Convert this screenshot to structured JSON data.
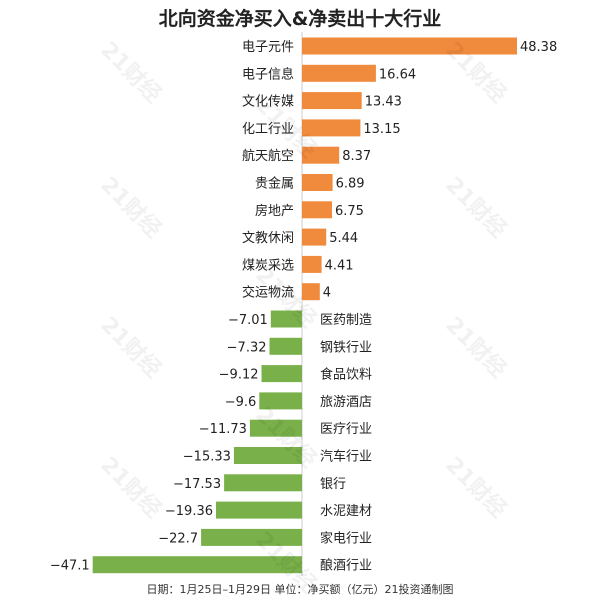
{
  "chart_data": {
    "type": "bar",
    "orientation": "horizontal",
    "title": "北向资金净买入&净卖出十大行业",
    "categories": [
      "电子元件",
      "电子信息",
      "文化传媒",
      "化工行业",
      "航天航空",
      "贵金属",
      "房地产",
      "文教休闲",
      "煤炭采选",
      "交运物流",
      "医药制造",
      "钢铁行业",
      "食品饮料",
      "旅游酒店",
      "医疗行业",
      "汽车行业",
      "银行",
      "水泥建材",
      "家电行业",
      "酿酒行业"
    ],
    "values": [
      48.38,
      16.64,
      13.43,
      13.15,
      8.37,
      6.89,
      6.75,
      5.44,
      4.41,
      4,
      -7.01,
      -7.32,
      -9.12,
      -9.6,
      -11.73,
      -15.33,
      -17.53,
      -19.36,
      -22.7,
      -47.1
    ],
    "value_labels": [
      "48.38",
      "16.64",
      "13.43",
      "13.15",
      "8.37",
      "6.89",
      "6.75",
      "5.44",
      "4.41",
      "4",
      "−7.01",
      "−7.32",
      "−9.12",
      "−9.6",
      "−11.73",
      "−15.33",
      "−17.53",
      "−19.36",
      "−22.7",
      "−47.1"
    ],
    "colors": {
      "positive": "#f08a3c",
      "negative": "#79b049"
    },
    "footer": "日期：1月25日–1月29日 单位：净买额（亿元）21投资通制图"
  },
  "watermark": "21财经"
}
